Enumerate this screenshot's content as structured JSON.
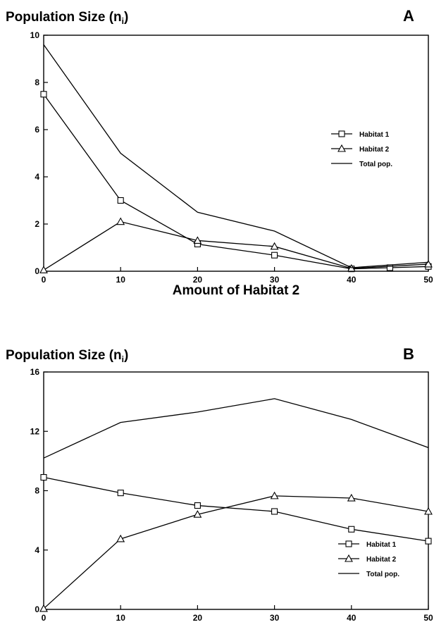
{
  "chart_data": [
    {
      "type": "line",
      "panel": "A",
      "ylabel_main": "Population Size (n",
      "ylabel_sub": "i",
      "ylabel_close": ")",
      "xlabel": "Amount of Habitat 2",
      "xlim": [
        0,
        50
      ],
      "ylim": [
        0,
        10
      ],
      "xticks": [
        0,
        10,
        20,
        30,
        40,
        50
      ],
      "yticks": [
        0,
        2,
        4,
        6,
        8,
        10
      ],
      "legend_position": "right",
      "series": [
        {
          "name": "Habitat 1",
          "marker": "square",
          "x": [
            0,
            10,
            20,
            30,
            40,
            45,
            50
          ],
          "y": [
            7.5,
            3.0,
            1.15,
            0.68,
            0.1,
            0.15,
            0.2
          ]
        },
        {
          "name": "Habitat 2",
          "marker": "triangle",
          "x": [
            0,
            10,
            20,
            30,
            40,
            50
          ],
          "y": [
            0.05,
            2.1,
            1.3,
            1.05,
            0.12,
            0.3
          ]
        },
        {
          "name": "Total pop.",
          "marker": "none",
          "x": [
            0,
            10,
            20,
            30,
            40,
            50
          ],
          "y": [
            9.6,
            5.0,
            2.5,
            1.7,
            0.15,
            0.38
          ]
        }
      ]
    },
    {
      "type": "line",
      "panel": "B",
      "ylabel_main": "Population Size (n",
      "ylabel_sub": "i",
      "ylabel_close": ")",
      "xlabel": "",
      "xlim": [
        0,
        50
      ],
      "ylim": [
        0,
        16
      ],
      "xticks": [
        0,
        10,
        20,
        30,
        40,
        50
      ],
      "yticks": [
        0,
        4,
        8,
        12,
        16
      ],
      "legend_position": "bottom-right",
      "series": [
        {
          "name": "Habitat 1",
          "marker": "square",
          "x": [
            0,
            10,
            20,
            30,
            40,
            50
          ],
          "y": [
            8.9,
            7.85,
            7.0,
            6.6,
            5.4,
            4.6
          ]
        },
        {
          "name": "Habitat 2",
          "marker": "triangle",
          "x": [
            0,
            10,
            20,
            30,
            40,
            50
          ],
          "y": [
            0.05,
            4.75,
            6.4,
            7.65,
            7.5,
            6.6
          ]
        },
        {
          "name": "Total pop.",
          "marker": "none",
          "x": [
            0,
            10,
            20,
            30,
            40,
            50
          ],
          "y": [
            10.2,
            12.6,
            13.3,
            14.2,
            12.8,
            10.9
          ]
        }
      ]
    }
  ]
}
